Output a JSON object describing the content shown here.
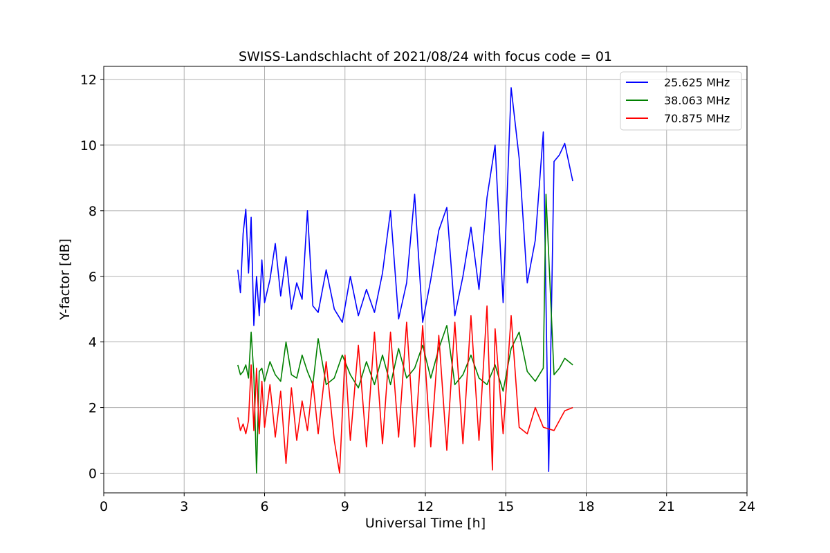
{
  "chart_data": {
    "type": "line",
    "title": "SWISS-Landschlacht of 2021/08/24 with focus code = 01",
    "xlabel": "Universal Time [h]",
    "ylabel": "Y-factor [dB]",
    "xlim": [
      0,
      24
    ],
    "ylim": [
      -0.6,
      12.4
    ],
    "xticks": [
      0,
      3,
      6,
      9,
      12,
      15,
      18,
      21,
      24
    ],
    "yticks": [
      0,
      2,
      4,
      6,
      8,
      10,
      12
    ],
    "grid": true,
    "legend_position": "top-right",
    "series": [
      {
        "name": "25.625 MHz",
        "color": "#0000ff",
        "x": [
          5.0,
          5.1,
          5.2,
          5.3,
          5.4,
          5.5,
          5.6,
          5.7,
          5.8,
          5.9,
          6.0,
          6.2,
          6.4,
          6.6,
          6.8,
          7.0,
          7.2,
          7.4,
          7.6,
          7.8,
          8.0,
          8.3,
          8.6,
          8.9,
          9.2,
          9.5,
          9.8,
          10.1,
          10.4,
          10.7,
          11.0,
          11.3,
          11.6,
          11.9,
          12.2,
          12.5,
          12.8,
          13.1,
          13.4,
          13.7,
          14.0,
          14.3,
          14.6,
          14.9,
          15.2,
          15.5,
          15.8,
          16.1,
          16.4,
          16.6,
          16.8,
          17.0,
          17.2,
          17.5
        ],
        "y": [
          6.2,
          5.5,
          7.3,
          8.05,
          6.1,
          7.8,
          4.5,
          6.0,
          4.8,
          6.5,
          5.2,
          5.9,
          7.0,
          5.4,
          6.6,
          5.0,
          5.8,
          5.3,
          8.0,
          5.1,
          4.9,
          6.2,
          5.0,
          4.6,
          6.0,
          4.8,
          5.6,
          4.9,
          6.1,
          8.0,
          4.7,
          5.8,
          8.5,
          4.6,
          5.9,
          7.4,
          8.1,
          4.8,
          6.0,
          7.5,
          5.6,
          8.4,
          10.0,
          5.2,
          11.75,
          9.6,
          5.8,
          7.1,
          10.4,
          0.05,
          9.5,
          9.7,
          10.05,
          8.9
        ]
      },
      {
        "name": "38.063 MHz",
        "color": "#008000",
        "x": [
          5.0,
          5.1,
          5.2,
          5.3,
          5.4,
          5.5,
          5.6,
          5.7,
          5.8,
          5.9,
          6.0,
          6.2,
          6.4,
          6.6,
          6.8,
          7.0,
          7.2,
          7.4,
          7.6,
          7.8,
          8.0,
          8.3,
          8.6,
          8.9,
          9.2,
          9.5,
          9.8,
          10.1,
          10.4,
          10.7,
          11.0,
          11.3,
          11.6,
          11.9,
          12.2,
          12.5,
          12.8,
          13.1,
          13.4,
          13.7,
          14.0,
          14.3,
          14.6,
          14.9,
          15.2,
          15.5,
          15.8,
          16.1,
          16.4,
          16.5,
          16.8,
          17.0,
          17.2,
          17.5
        ],
        "y": [
          3.3,
          3.0,
          3.1,
          3.3,
          2.9,
          4.3,
          3.0,
          0.0,
          3.1,
          3.2,
          2.8,
          3.4,
          3.0,
          2.8,
          4.0,
          3.0,
          2.9,
          3.6,
          3.1,
          2.7,
          4.1,
          2.7,
          2.9,
          3.6,
          3.0,
          2.6,
          3.4,
          2.7,
          3.6,
          2.7,
          3.8,
          2.9,
          3.2,
          3.9,
          2.9,
          3.8,
          4.5,
          2.7,
          3.0,
          3.6,
          2.9,
          2.7,
          3.3,
          2.5,
          3.8,
          4.3,
          3.1,
          2.8,
          3.2,
          8.5,
          3.0,
          3.2,
          3.5,
          3.3
        ]
      },
      {
        "name": "70.875 MHz",
        "color": "#ff0000",
        "x": [
          5.0,
          5.1,
          5.2,
          5.3,
          5.4,
          5.5,
          5.6,
          5.7,
          5.8,
          5.9,
          6.0,
          6.2,
          6.4,
          6.6,
          6.8,
          7.0,
          7.2,
          7.4,
          7.6,
          7.8,
          8.0,
          8.3,
          8.6,
          8.8,
          9.0,
          9.2,
          9.5,
          9.8,
          10.1,
          10.4,
          10.7,
          11.0,
          11.3,
          11.6,
          11.9,
          12.2,
          12.5,
          12.8,
          13.1,
          13.4,
          13.7,
          14.0,
          14.3,
          14.5,
          14.6,
          14.9,
          15.2,
          15.5,
          15.8,
          16.1,
          16.4,
          16.8,
          17.2,
          17.5
        ],
        "y": [
          1.7,
          1.3,
          1.5,
          1.2,
          1.6,
          3.3,
          1.3,
          3.2,
          1.2,
          2.8,
          1.4,
          2.7,
          1.1,
          2.5,
          0.3,
          2.6,
          1.0,
          2.2,
          1.3,
          2.8,
          1.2,
          3.4,
          1.0,
          0.0,
          3.6,
          1.0,
          3.9,
          0.8,
          4.3,
          0.9,
          4.3,
          1.1,
          4.6,
          0.8,
          4.5,
          0.8,
          4.2,
          0.7,
          4.6,
          0.9,
          4.8,
          1.0,
          5.1,
          0.1,
          4.4,
          1.2,
          4.8,
          1.4,
          1.2,
          2.0,
          1.4,
          1.3,
          1.9,
          2.0
        ]
      }
    ]
  }
}
